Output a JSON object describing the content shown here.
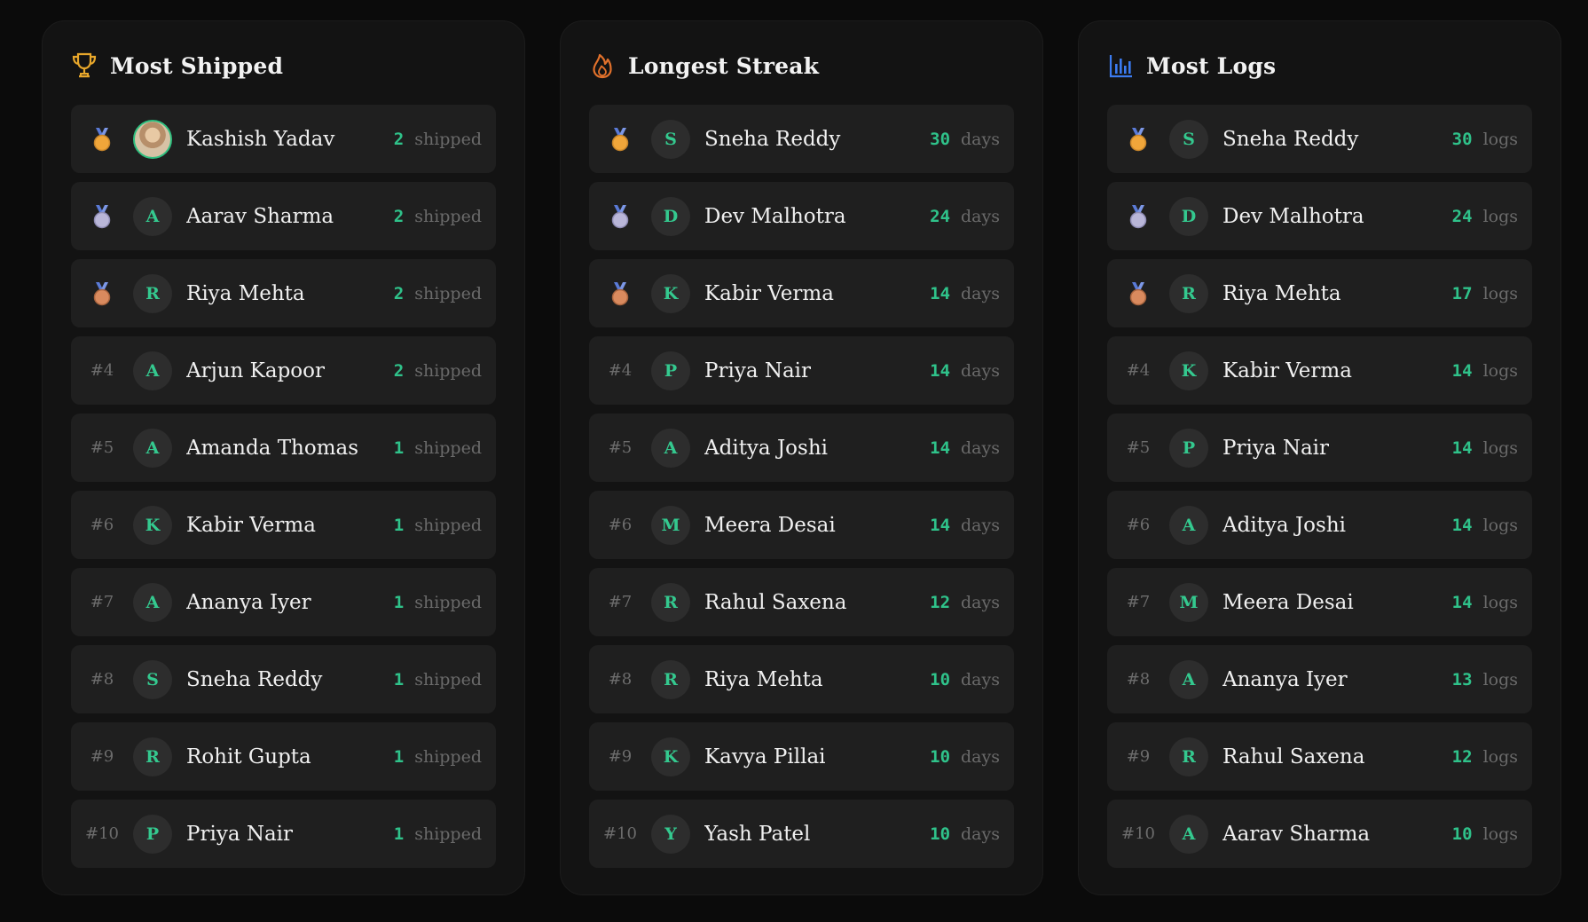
{
  "colors": {
    "background": "#0b0b0b",
    "card": "#131313",
    "row": "#1f1f1f",
    "accent_green": "#2fc28a",
    "trophy_gold": "#e8a72b",
    "flame_orange": "#e2712b",
    "chart_blue": "#3b7bf0"
  },
  "boards": [
    {
      "title": "Most Shipped",
      "icon": "trophy-icon",
      "unit": "shipped",
      "entries": [
        {
          "rank": "1",
          "avatar": "photo",
          "name": "Kashish Yadav",
          "value": "2"
        },
        {
          "rank": "2",
          "avatar": "A",
          "name": "Aarav Sharma",
          "value": "2"
        },
        {
          "rank": "3",
          "avatar": "R",
          "name": "Riya Mehta",
          "value": "2"
        },
        {
          "rank": "#4",
          "avatar": "A",
          "name": "Arjun Kapoor",
          "value": "2"
        },
        {
          "rank": "#5",
          "avatar": "A",
          "name": "Amanda Thomas",
          "value": "1"
        },
        {
          "rank": "#6",
          "avatar": "K",
          "name": "Kabir Verma",
          "value": "1"
        },
        {
          "rank": "#7",
          "avatar": "A",
          "name": "Ananya Iyer",
          "value": "1"
        },
        {
          "rank": "#8",
          "avatar": "S",
          "name": "Sneha Reddy",
          "value": "1"
        },
        {
          "rank": "#9",
          "avatar": "R",
          "name": "Rohit Gupta",
          "value": "1"
        },
        {
          "rank": "#10",
          "avatar": "P",
          "name": "Priya Nair",
          "value": "1"
        }
      ]
    },
    {
      "title": "Longest Streak",
      "icon": "flame-icon",
      "unit": "days",
      "entries": [
        {
          "rank": "1",
          "avatar": "S",
          "name": "Sneha Reddy",
          "value": "30"
        },
        {
          "rank": "2",
          "avatar": "D",
          "name": "Dev Malhotra",
          "value": "24"
        },
        {
          "rank": "3",
          "avatar": "K",
          "name": "Kabir Verma",
          "value": "14"
        },
        {
          "rank": "#4",
          "avatar": "P",
          "name": "Priya Nair",
          "value": "14"
        },
        {
          "rank": "#5",
          "avatar": "A",
          "name": "Aditya Joshi",
          "value": "14"
        },
        {
          "rank": "#6",
          "avatar": "M",
          "name": "Meera Desai",
          "value": "14"
        },
        {
          "rank": "#7",
          "avatar": "R",
          "name": "Rahul Saxena",
          "value": "12"
        },
        {
          "rank": "#8",
          "avatar": "R",
          "name": "Riya Mehta",
          "value": "10"
        },
        {
          "rank": "#9",
          "avatar": "K",
          "name": "Kavya Pillai",
          "value": "10"
        },
        {
          "rank": "#10",
          "avatar": "Y",
          "name": "Yash Patel",
          "value": "10"
        }
      ]
    },
    {
      "title": "Most Logs",
      "icon": "bar-chart-icon",
      "unit": "logs",
      "entries": [
        {
          "rank": "1",
          "avatar": "S",
          "name": "Sneha Reddy",
          "value": "30"
        },
        {
          "rank": "2",
          "avatar": "D",
          "name": "Dev Malhotra",
          "value": "24"
        },
        {
          "rank": "3",
          "avatar": "R",
          "name": "Riya Mehta",
          "value": "17"
        },
        {
          "rank": "#4",
          "avatar": "K",
          "name": "Kabir Verma",
          "value": "14"
        },
        {
          "rank": "#5",
          "avatar": "P",
          "name": "Priya Nair",
          "value": "14"
        },
        {
          "rank": "#6",
          "avatar": "A",
          "name": "Aditya Joshi",
          "value": "14"
        },
        {
          "rank": "#7",
          "avatar": "M",
          "name": "Meera Desai",
          "value": "14"
        },
        {
          "rank": "#8",
          "avatar": "A",
          "name": "Ananya Iyer",
          "value": "13"
        },
        {
          "rank": "#9",
          "avatar": "R",
          "name": "Rahul Saxena",
          "value": "12"
        },
        {
          "rank": "#10",
          "avatar": "A",
          "name": "Aarav Sharma",
          "value": "10"
        }
      ]
    }
  ]
}
